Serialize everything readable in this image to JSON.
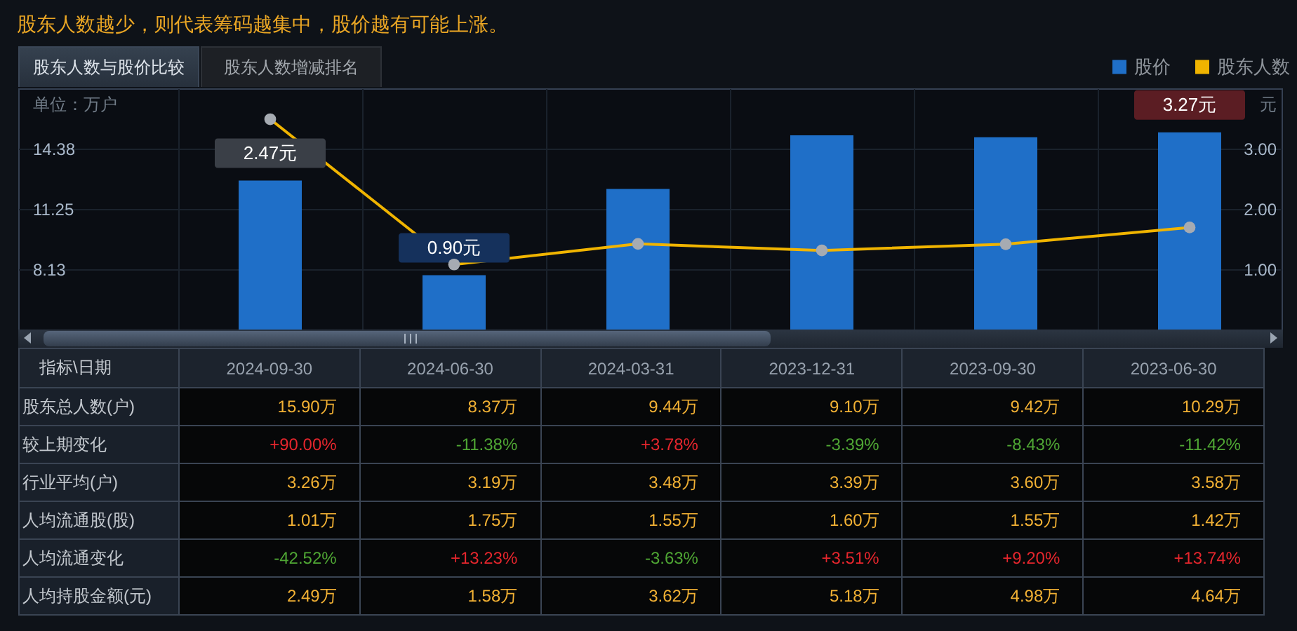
{
  "chart_data": [
    {
      "type": "bar",
      "title": "股东人数越少，则代表筹码越集中，股价越有可能上涨。",
      "ylabel": "单位：万户",
      "y2label": "元",
      "annotations": [
        "股东人数与股价比较",
        "股东人数增减排名"
      ],
      "categories": [
        null,
        null,
        null,
        null,
        null,
        null
      ],
      "series": [
        {
          "name": "股价",
          "type": "bar",
          "axis": "y2",
          "color": "#1f6fc8",
          "values": [
            2.47,
            0.9,
            2.33,
            3.22,
            3.19,
            3.27
          ],
          "value_labels": [
            "2.47元",
            "0.90元",
            null,
            null,
            null,
            "3.27元"
          ]
        },
        {
          "name": "股东人数",
          "type": "line",
          "color": "#f0b400",
          "values": [
            15.9,
            8.37,
            9.44,
            9.1,
            9.42,
            10.29
          ]
        }
      ],
      "ylim": [
        5,
        17.5
      ],
      "yticks": [
        8.13,
        11.25,
        14.38
      ],
      "y2lim": [
        0,
        4
      ],
      "y2ticks": [
        {
          "value": 1,
          "label": "1.00"
        },
        {
          "value": 2,
          "label": "2.00"
        },
        {
          "value": 3,
          "label": "3.00"
        }
      ],
      "grid": true,
      "legend": "top right",
      "marker": "circle"
    },
    {
      "type": "other",
      "xlabel": "指标\\日期",
      "categories": [
        "2024-09-30",
        "2024-06-30",
        "2024-03-31",
        "2023-12-31",
        "2023-09-30",
        "2023-06-30"
      ],
      "series": [
        {
          "name": "股东总人数(户)",
          "colors": [
            "#f2b134",
            "#f2b134",
            "#f2b134",
            "#f2b134",
            "#f2b134",
            "#f2b134"
          ],
          "values": [
            15.9,
            8.37,
            9.44,
            9.1,
            9.42,
            10.29
          ],
          "value_labels": [
            "15.90万",
            "8.37万",
            "9.44万",
            "9.10万",
            "9.42万",
            "10.29万"
          ]
        },
        {
          "name": "较上期变化",
          "colors": [
            "#e5262d",
            "#4fa634",
            "#e5262d",
            "#4fa634",
            "#4fa634",
            "#4fa634"
          ],
          "values": [
            90.0,
            -11.38,
            3.78,
            -3.39,
            -8.43,
            -11.42
          ],
          "value_labels": [
            "+90.00%",
            "-11.38%",
            "+3.78%",
            "-3.39%",
            "-8.43%",
            "-11.42%"
          ]
        },
        {
          "name": "行业平均(户)",
          "colors": [
            "#f2b134",
            "#f2b134",
            "#f2b134",
            "#f2b134",
            "#f2b134",
            "#f2b134"
          ],
          "values": [
            3.26,
            3.19,
            3.48,
            3.39,
            3.6,
            3.58
          ],
          "value_labels": [
            "3.26万",
            "3.19万",
            "3.48万",
            "3.39万",
            "3.60万",
            "3.58万"
          ]
        },
        {
          "name": "人均流通股(股)",
          "colors": [
            "#f2b134",
            "#f2b134",
            "#f2b134",
            "#f2b134",
            "#f2b134",
            "#f2b134"
          ],
          "values": [
            1.01,
            1.75,
            1.55,
            1.6,
            1.55,
            1.42
          ],
          "value_labels": [
            "1.01万",
            "1.75万",
            "1.55万",
            "1.60万",
            "1.55万",
            "1.42万"
          ]
        },
        {
          "name": "人均流通变化",
          "colors": [
            "#4fa634",
            "#e5262d",
            "#4fa634",
            "#e5262d",
            "#e5262d",
            "#e5262d"
          ],
          "values": [
            -42.52,
            13.23,
            -3.63,
            3.51,
            9.2,
            13.74
          ],
          "value_labels": [
            "-42.52%",
            "+13.23%",
            "-3.63%",
            "+3.51%",
            "+9.20%",
            "+13.74%"
          ]
        },
        {
          "name": "人均持股金额(元)",
          "colors": [
            "#f2b134",
            "#f2b134",
            "#f2b134",
            "#f2b134",
            "#f2b134",
            "#f2b134"
          ],
          "values": [
            2.49,
            1.58,
            3.62,
            5.18,
            4.98,
            4.64
          ],
          "value_labels": [
            "2.49万",
            "1.58万",
            "3.62万",
            "5.18万",
            "4.98万",
            "4.64万"
          ]
        }
      ]
    }
  ]
}
